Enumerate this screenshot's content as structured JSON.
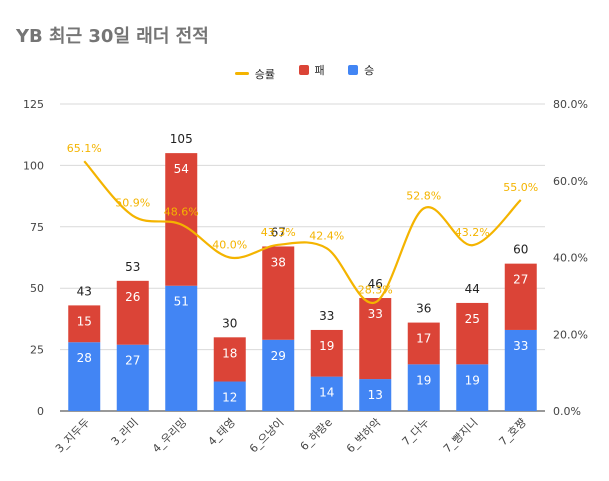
{
  "chart_data": {
    "type": "bar",
    "title": "YB 최근 30일 래더 전적",
    "categories": [
      "3_지두두",
      "3_라미",
      "4_우리밍",
      "4_태영",
      "6_으냥이",
      "6_하랑e",
      "6_벅하악",
      "7_다누",
      "7_빵지니",
      "7_호쨩"
    ],
    "series": [
      {
        "name": "승",
        "values": [
          28,
          27,
          51,
          12,
          29,
          14,
          13,
          19,
          19,
          33
        ],
        "color": "#4285f4"
      },
      {
        "name": "패",
        "values": [
          15,
          26,
          54,
          18,
          38,
          19,
          33,
          17,
          25,
          27
        ],
        "color": "#db4437"
      }
    ],
    "totals": [
      43,
      53,
      105,
      30,
      67,
      33,
      46,
      36,
      44,
      60
    ],
    "line_series": {
      "name": "승률",
      "values": [
        65.1,
        50.9,
        48.6,
        40.0,
        43.3,
        42.4,
        28.3,
        52.8,
        43.2,
        55.0
      ],
      "color": "#f4b400"
    },
    "ylim": [
      0,
      125
    ],
    "y_ticks": [
      0,
      25,
      50,
      75,
      100,
      125
    ],
    "y2lim": [
      0,
      80
    ],
    "y2_ticks": [
      0,
      20,
      40,
      60,
      80
    ],
    "legend_order": [
      "승률",
      "패",
      "승"
    ],
    "legend_position": "top",
    "grid": true,
    "stacked": true
  }
}
